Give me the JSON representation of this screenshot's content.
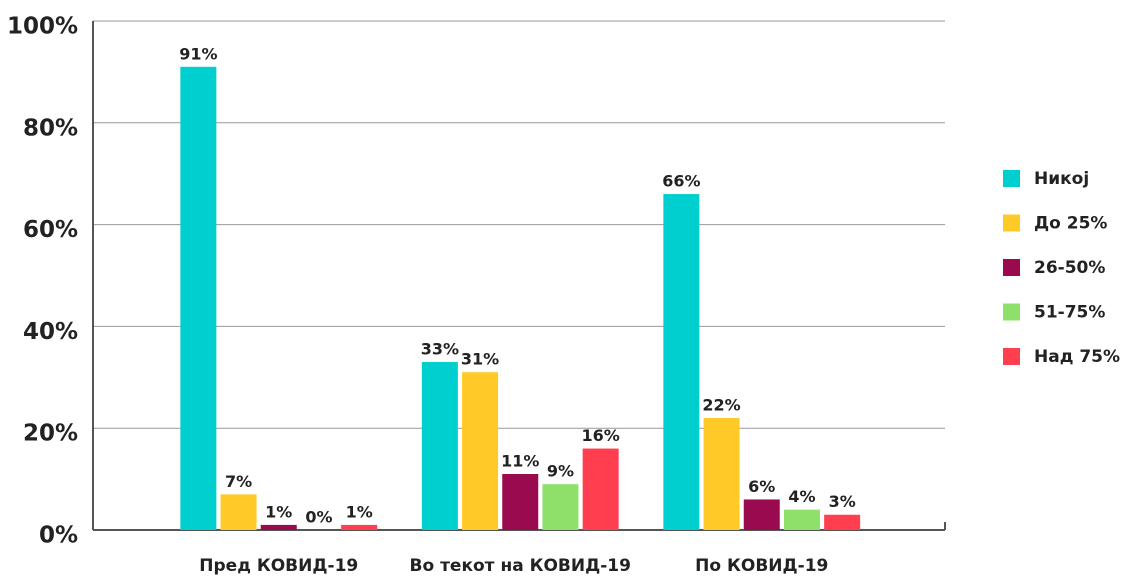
{
  "chart_data": {
    "type": "bar",
    "categories": [
      "Пред КОВИД-19",
      "Во текот на КОВИД-19",
      "По КОВИД-19"
    ],
    "series": [
      {
        "name": "Никој",
        "color": "#00cfcf",
        "values": [
          91,
          33,
          66
        ],
        "value_labels": [
          "91%",
          "33%",
          "66%"
        ]
      },
      {
        "name": "До 25%",
        "color": "#ffca28",
        "values": [
          7,
          31,
          22
        ],
        "value_labels": [
          "7%",
          "31%",
          "22%"
        ]
      },
      {
        "name": "26-50%",
        "color": "#990a4f",
        "values": [
          1,
          11,
          6
        ],
        "value_labels": [
          "1%",
          "11%",
          "6%"
        ]
      },
      {
        "name": "51-75%",
        "color": "#8ee06a",
        "values": [
          0,
          9,
          4
        ],
        "value_labels": [
          "0%",
          "9%",
          "4%"
        ]
      },
      {
        "name": "Над 75%",
        "color": "#ff3f4f",
        "values": [
          1,
          16,
          3
        ],
        "value_labels": [
          "1%",
          "16%",
          "3%"
        ]
      }
    ],
    "ylim": [
      0,
      100
    ],
    "yticks": [
      {
        "value": 0,
        "label": "0%"
      },
      {
        "value": 20,
        "label": "20%"
      },
      {
        "value": 40,
        "label": "40%"
      },
      {
        "value": 60,
        "label": "60%"
      },
      {
        "value": 80,
        "label": "80%"
      },
      {
        "value": 100,
        "label": "100%"
      }
    ],
    "grid": true,
    "legend": "right"
  }
}
